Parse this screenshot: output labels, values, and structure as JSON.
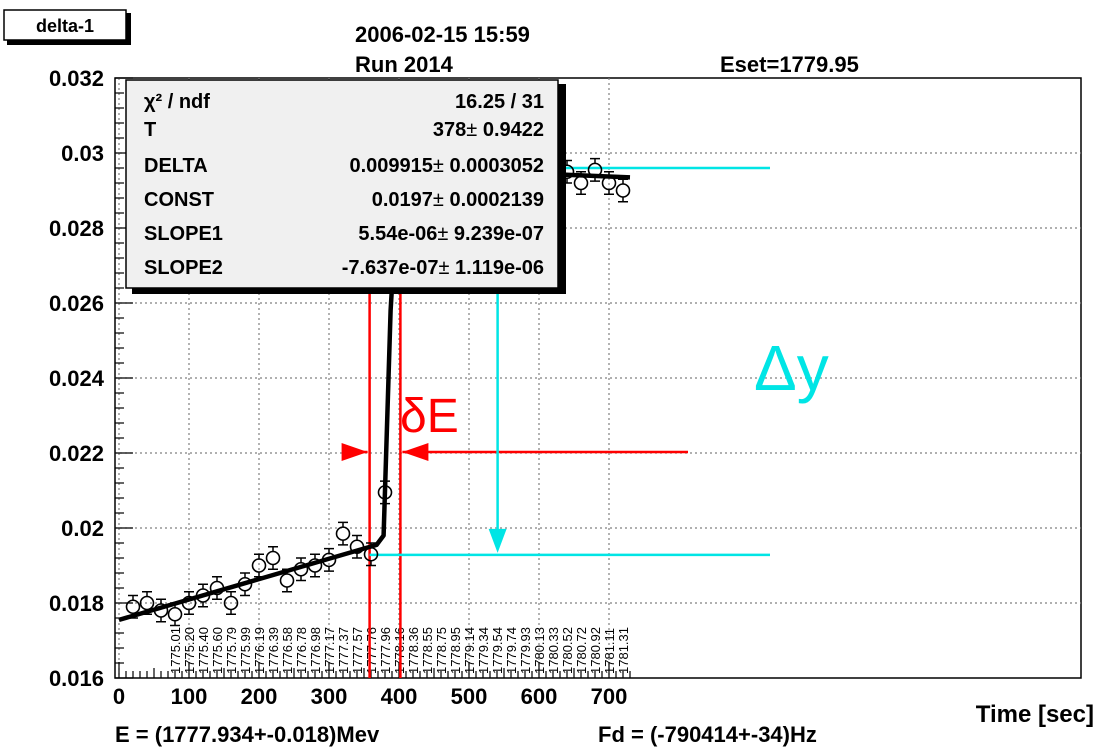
{
  "tag": "delta-1",
  "header": {
    "datetime": "2006-02-15 15:59",
    "run": "Run 2014",
    "eset": "Eset=1779.95"
  },
  "stats": {
    "chi_label": "χ² / ndf",
    "chi_value": "16.25 / 31",
    "rows": [
      {
        "name": "T",
        "value": "378",
        "error": "0.9422"
      },
      {
        "name": "DELTA",
        "value": "0.009915",
        "error": "0.0003052"
      },
      {
        "name": "CONST",
        "value": "0.0197",
        "error": "0.0002139"
      },
      {
        "name": "SLOPE1",
        "value": "5.54e-06",
        "error": "9.239e-07"
      },
      {
        "name": "SLOPE2",
        "value": "-7.637e-07",
        "error": "1.119e-06"
      }
    ],
    "pm": "±"
  },
  "annotations": {
    "delta_e": "δE",
    "delta_y": "Δy",
    "bottom_left": "E = (1777.934+-0.018)Mev",
    "bottom_right": "Fd = (-790414+-34)Hz"
  },
  "colors": {
    "data": "#000000",
    "fit": "#000000",
    "red_marker": "#ff0000",
    "cyan_marker": "#00e5e5",
    "grid": "#808080",
    "stats_fill": "#f0f0f0"
  },
  "chart_data": {
    "type": "scatter",
    "title": "",
    "xlabel": "Time [sec]",
    "ylabel": "",
    "xlim": [
      0,
      730
    ],
    "ylim": [
      0.016,
      0.032
    ],
    "xticks": [
      0,
      100,
      200,
      300,
      400,
      500,
      600,
      700
    ],
    "xtick_labels": [
      "0",
      "100",
      "200",
      "300",
      "400",
      "500",
      "600",
      "700"
    ],
    "yticks": [
      0.016,
      0.018,
      0.02,
      0.022,
      0.024,
      0.026,
      0.028,
      0.03,
      0.032
    ],
    "ytick_labels": [
      "0.016",
      "0.018",
      "0.02",
      "0.022",
      "0.024",
      "0.026",
      "0.028",
      "0.03",
      "0.032"
    ],
    "grid": true,
    "series": [
      {
        "x": [
          20,
          40,
          60,
          80,
          100,
          120,
          140,
          160,
          180,
          200,
          220,
          240,
          260,
          280,
          300,
          320,
          340,
          360,
          380,
          400,
          420,
          440,
          460,
          480,
          500,
          520,
          540,
          560,
          580,
          600,
          620,
          640,
          660,
          680,
          700,
          720
        ],
        "y": [
          0.0179,
          0.018,
          0.0178,
          0.0177,
          0.018,
          0.0182,
          0.0184,
          0.018,
          0.0185,
          0.019,
          0.0192,
          0.0186,
          0.0189,
          0.019,
          0.01915,
          0.01985,
          0.0195,
          0.0193,
          0.02095,
          0.0296,
          0.02925,
          0.02925,
          0.03,
          0.0296,
          0.02905,
          0.0303,
          0.0296,
          0.02915,
          0.0298,
          0.0296,
          0.0298,
          0.0295,
          0.0292,
          0.02955,
          0.0292,
          0.029
        ],
        "yerr": [
          0.0003,
          0.0003,
          0.0003,
          0.0003,
          0.0003,
          0.0003,
          0.0003,
          0.0003,
          0.0003,
          0.0003,
          0.0003,
          0.0003,
          0.0003,
          0.0003,
          0.0003,
          0.0003,
          0.0003,
          0.0003,
          0.0003,
          0.0003,
          0.0003,
          0.0003,
          0.0003,
          0.0003,
          0.0003,
          0.0003,
          0.0003,
          0.0003,
          0.0003,
          0.0003,
          0.0003,
          0.0003,
          0.0003,
          0.0003,
          0.0003,
          0.0003
        ]
      }
    ],
    "fit_curve": {
      "x": [
        0,
        368,
        378,
        388,
        400,
        730
      ],
      "y": [
        0.01755,
        0.01955,
        0.0198,
        0.0258,
        0.0296,
        0.02935
      ]
    },
    "energy_labels": [
      "1775.01",
      "1775.20",
      "1775.40",
      "1775.60",
      "1775.79",
      "1775.99",
      "1776.19",
      "1776.39",
      "1776.58",
      "1776.78",
      "1776.98",
      "1777.17",
      "1777.37",
      "1777.57",
      "1777.76",
      "1777.96",
      "1778.16",
      "1778.36",
      "1778.55",
      "1778.75",
      "1778.95",
      "1779.14",
      "1779.34",
      "1779.54",
      "1779.74",
      "1779.93",
      "1780.13",
      "1780.33",
      "1780.52",
      "1780.72",
      "1780.92",
      "1781.11",
      "1781.31"
    ],
    "energy_label_x_start": 80,
    "energy_label_x_step": 20,
    "red_vlines_x": [
      358,
      402
    ],
    "cyan_levels_y": [
      0.01955,
      0.0296
    ],
    "cyan_arrow_x": 518
  }
}
